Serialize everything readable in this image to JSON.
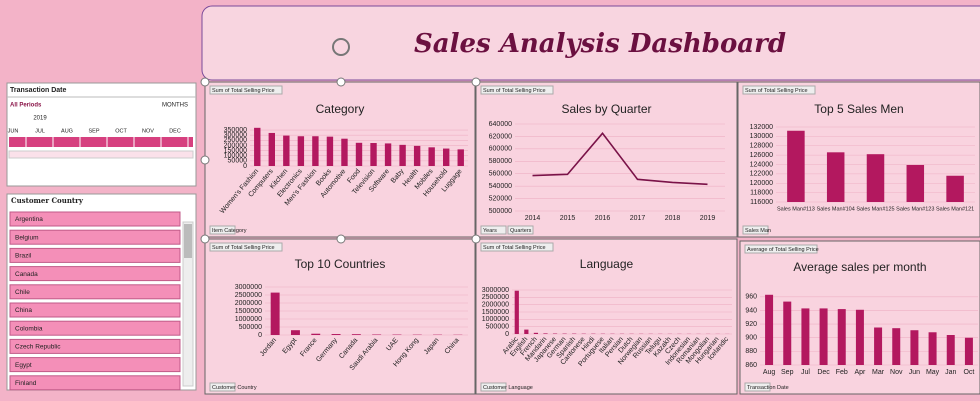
{
  "dashboard_title": "Sales Analysis Dashboard",
  "date_slicer": {
    "title": "Transaction Date",
    "periods": "All Periods",
    "level": "MONTHS",
    "year": "2019",
    "months": [
      "JUN",
      "JUL",
      "AUG",
      "SEP",
      "OCT",
      "NOV",
      "DEC"
    ]
  },
  "country_slicer": {
    "title": "Customer Country",
    "items": [
      "Argentina",
      "Belgium",
      "Brazil",
      "Canada",
      "Chile",
      "China",
      "Colombia",
      "Czech Republic",
      "Egypt",
      "Finland"
    ]
  },
  "chart_data": [
    {
      "type": "bar",
      "title": "Category",
      "value_field": "Sum of Total Selling Price",
      "fields": [
        "Item Category"
      ],
      "color": "#b3185f",
      "grid": true,
      "categories": [
        "Women's Fashion",
        "Computers",
        "Kitchen",
        "Electronics",
        "Men's Fashion",
        "Books",
        "Automotive",
        "Food",
        "Television",
        "Software",
        "Baby",
        "Health",
        "Mobiles",
        "Household",
        "Luggage"
      ],
      "values": [
        372000,
        322000,
        296000,
        290000,
        290000,
        286000,
        266000,
        226000,
        224000,
        220000,
        206000,
        196000,
        182000,
        170000,
        162000
      ],
      "ylim": [
        0,
        380000
      ],
      "yticks": [
        0,
        50000,
        100000,
        150000,
        200000,
        250000,
        300000,
        350000
      ]
    },
    {
      "type": "line",
      "title": "Sales by Quarter",
      "value_field": "Sum of Total Selling Price",
      "fields": [
        "Years",
        "Quarters"
      ],
      "color": "#7a1248",
      "grid": true,
      "categories": [
        "2014",
        "2015",
        "2016",
        "2017",
        "2018",
        "2019"
      ],
      "values": [
        557000,
        559000,
        625000,
        551000,
        546000,
        543000
      ],
      "ylim": [
        500000,
        640000
      ],
      "yticks": [
        500000,
        520000,
        540000,
        560000,
        580000,
        600000,
        620000,
        640000
      ]
    },
    {
      "type": "bar",
      "title": "Top 5 Sales Men",
      "value_field": "Sum of Total Selling Price",
      "fields": [
        "Sales Man"
      ],
      "color": "#b3185f",
      "grid": true,
      "categories": [
        "Sales Man#113",
        "Sales Man#104",
        "Sales Man#125",
        "Sales Man#123",
        "Sales Man#121"
      ],
      "values": [
        131200,
        126600,
        126200,
        123900,
        121600
      ],
      "ylim": [
        116000,
        132000
      ],
      "yticks": [
        116000,
        118000,
        120000,
        122000,
        124000,
        126000,
        128000,
        130000,
        132000
      ]
    },
    {
      "type": "bar",
      "title": "Top 10 Countries",
      "value_field": "Sum of Total Selling Price",
      "fields": [
        "Customer Country"
      ],
      "color": "#b3185f",
      "grid": true,
      "categories": [
        "Jordan",
        "Egypt",
        "France",
        "Germany",
        "Canada",
        "Saudi Arabia",
        "UAE",
        "Hong Kong",
        "Japan",
        "China"
      ],
      "values": [
        2650000,
        300000,
        80000,
        60000,
        50000,
        30000,
        25000,
        20000,
        20000,
        15000
      ],
      "ylim": [
        0,
        3000000
      ],
      "yticks": [
        0,
        500000,
        1000000,
        1500000,
        2000000,
        2500000,
        3000000
      ]
    },
    {
      "type": "bar",
      "title": "Language",
      "value_field": "Sum of Total Selling Price",
      "fields": [
        "Customer Language"
      ],
      "color": "#b3185f",
      "grid": true,
      "categories": [
        "Arabic",
        "English",
        "French",
        "Mandarin",
        "Japanese",
        "German",
        "Spanish",
        "Cantonese",
        "Hindi",
        "Portuguese",
        "Italian",
        "Persian",
        "Dutch",
        "Norwegian",
        "Russian",
        "Telugu",
        "Kazakh",
        "Czech",
        "Indonesian",
        "Romanian",
        "Mongolian",
        "Hungarian",
        "Icelandic"
      ],
      "values": [
        2950000,
        300000,
        80000,
        40000,
        30000,
        25000,
        25000,
        20000,
        20000,
        18000,
        16000,
        15000,
        14000,
        13000,
        12000,
        11000,
        10000,
        10000,
        9000,
        8000,
        8000,
        7000,
        6000
      ],
      "ylim": [
        0,
        3000000
      ],
      "yticks": [
        0,
        500000,
        1000000,
        1500000,
        2000000,
        2500000,
        3000000
      ]
    },
    {
      "type": "bar",
      "title": "Average sales per month",
      "value_field": "Average of Total Selling Price",
      "fields": [
        "Transaction Date"
      ],
      "color": "#b3185f",
      "grid": true,
      "categories": [
        "Aug",
        "Sep",
        "Jul",
        "Dec",
        "Feb",
        "Apr",
        "Mar",
        "Nov",
        "Jun",
        "May",
        "Jan",
        "Oct"
      ],
      "values": [
        963,
        953,
        943,
        943,
        942,
        941,
        915,
        914,
        911,
        908,
        904,
        900
      ],
      "ylim": [
        860,
        970
      ],
      "yticks": [
        860,
        880,
        900,
        920,
        940,
        960
      ]
    }
  ]
}
